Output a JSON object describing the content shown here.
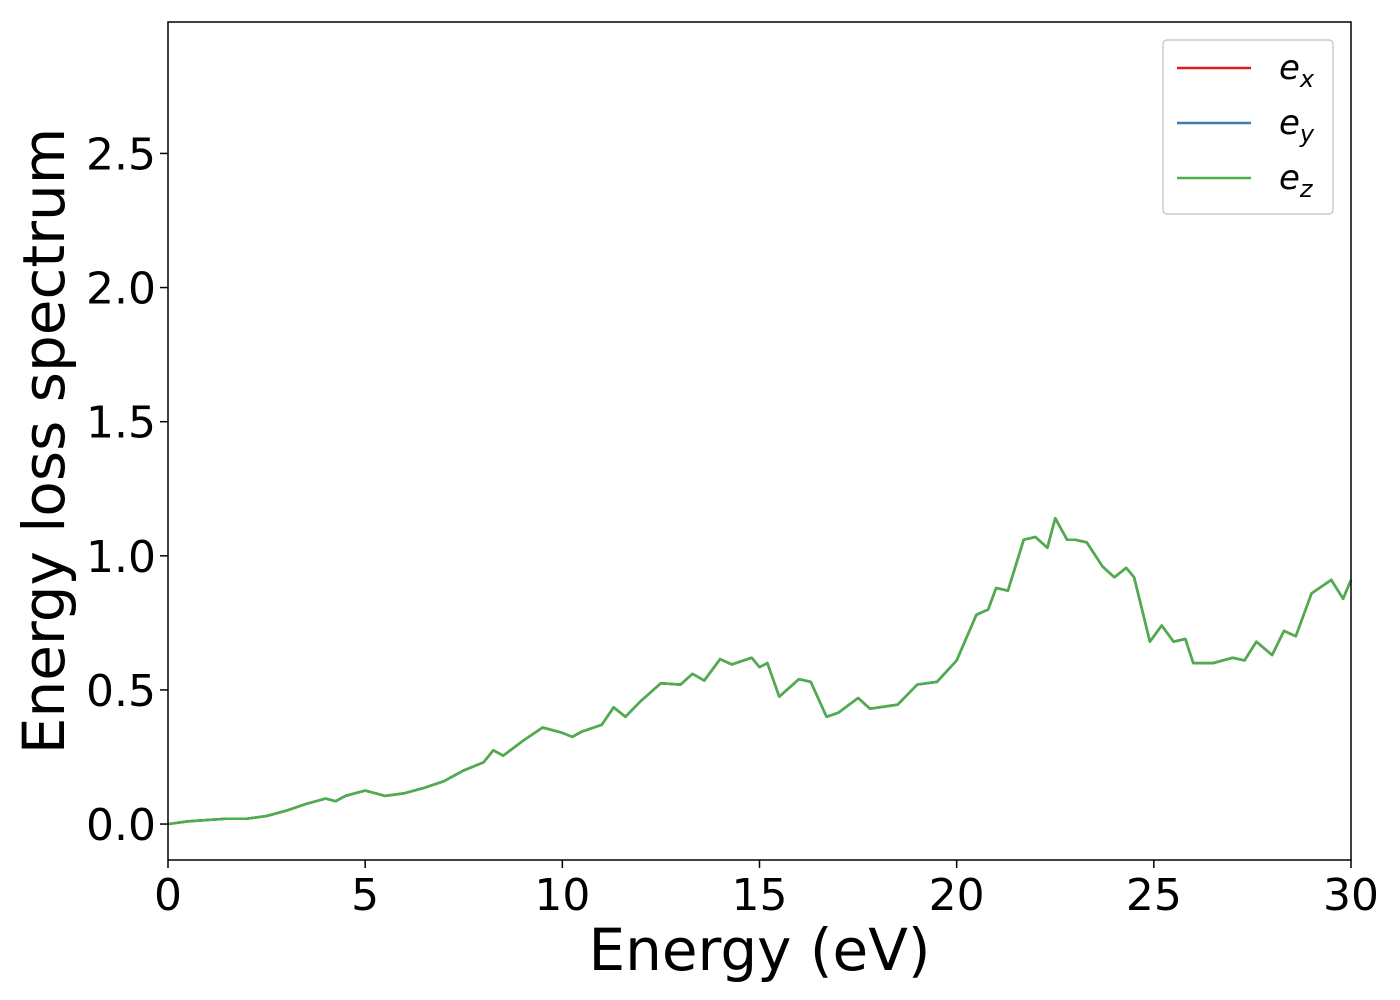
{
  "chart_data": {
    "type": "line",
    "xlabel": "Energy (eV)",
    "ylabel": "Energy loss spectrum",
    "x": [
      0,
      0.5,
      1,
      1.5,
      2,
      2.5,
      3,
      3.5,
      4,
      4.25,
      4.5,
      5,
      5.5,
      6,
      6.5,
      7,
      7.5,
      8,
      8.25,
      8.5,
      9,
      9.5,
      10,
      10.25,
      10.5,
      11,
      11.3,
      11.6,
      12,
      12.5,
      13,
      13.3,
      13.6,
      14,
      14.3,
      14.6,
      14.8,
      15,
      15.2,
      15.5,
      16,
      16.3,
      16.7,
      17,
      17.5,
      17.8,
      18.5,
      19,
      19.5,
      20,
      20.5,
      20.8,
      21,
      21.3,
      21.7,
      22,
      22.3,
      22.5,
      22.8,
      23,
      23.3,
      23.7,
      24,
      24.3,
      24.5,
      24.9,
      25.2,
      25.5,
      25.8,
      26,
      26.5,
      27,
      27.3,
      27.6,
      28,
      28.3,
      28.6,
      29,
      29.5,
      29.8,
      30
    ],
    "series": [
      {
        "name": "e_x",
        "color": "#e41a1c",
        "values": [
          0.0,
          0.01,
          0.015,
          0.02,
          0.02,
          0.03,
          0.05,
          0.075,
          0.095,
          0.085,
          0.105,
          0.125,
          0.105,
          0.115,
          0.135,
          0.16,
          0.2,
          0.23,
          0.275,
          0.255,
          0.31,
          0.36,
          0.34,
          0.325,
          0.345,
          0.37,
          0.435,
          0.4,
          0.46,
          0.525,
          0.52,
          0.56,
          0.535,
          0.615,
          0.595,
          0.61,
          0.62,
          0.585,
          0.6,
          0.475,
          0.54,
          0.53,
          0.4,
          0.415,
          0.47,
          0.43,
          0.445,
          0.52,
          0.53,
          0.61,
          0.78,
          0.8,
          0.88,
          0.87,
          1.06,
          1.07,
          1.03,
          1.14,
          1.06,
          1.06,
          1.05,
          0.96,
          0.92,
          0.955,
          0.92,
          0.68,
          0.74,
          0.68,
          0.69,
          0.6,
          0.6,
          0.62,
          0.61,
          0.68,
          0.63,
          0.72,
          0.7,
          0.86,
          0.91,
          0.84,
          0.91
        ]
      },
      {
        "name": "e_y",
        "color": "#377eb8",
        "values": [
          0.0,
          0.01,
          0.015,
          0.02,
          0.02,
          0.03,
          0.05,
          0.075,
          0.095,
          0.085,
          0.105,
          0.125,
          0.105,
          0.115,
          0.135,
          0.16,
          0.2,
          0.23,
          0.275,
          0.255,
          0.31,
          0.36,
          0.34,
          0.325,
          0.345,
          0.37,
          0.435,
          0.4,
          0.46,
          0.525,
          0.52,
          0.56,
          0.535,
          0.615,
          0.595,
          0.61,
          0.62,
          0.585,
          0.6,
          0.475,
          0.54,
          0.53,
          0.4,
          0.415,
          0.47,
          0.43,
          0.445,
          0.52,
          0.53,
          0.61,
          0.78,
          0.8,
          0.88,
          0.87,
          1.06,
          1.07,
          1.03,
          1.14,
          1.06,
          1.06,
          1.05,
          0.96,
          0.92,
          0.955,
          0.92,
          0.68,
          0.74,
          0.68,
          0.69,
          0.6,
          0.6,
          0.62,
          0.61,
          0.68,
          0.63,
          0.72,
          0.7,
          0.86,
          0.91,
          0.84,
          0.91
        ]
      },
      {
        "name": "e_z",
        "color": "#4daf4a",
        "values": [
          0.0,
          0.01,
          0.015,
          0.02,
          0.02,
          0.03,
          0.05,
          0.075,
          0.095,
          0.085,
          0.105,
          0.125,
          0.105,
          0.115,
          0.135,
          0.16,
          0.2,
          0.23,
          0.275,
          0.255,
          0.31,
          0.36,
          0.34,
          0.325,
          0.345,
          0.37,
          0.435,
          0.4,
          0.46,
          0.525,
          0.52,
          0.56,
          0.535,
          0.615,
          0.595,
          0.61,
          0.62,
          0.585,
          0.6,
          0.475,
          0.54,
          0.53,
          0.4,
          0.415,
          0.47,
          0.43,
          0.445,
          0.52,
          0.53,
          0.61,
          0.78,
          0.8,
          0.88,
          0.87,
          1.06,
          1.07,
          1.03,
          1.14,
          1.06,
          1.06,
          1.05,
          0.96,
          0.92,
          0.955,
          0.92,
          0.68,
          0.74,
          0.68,
          0.69,
          0.6,
          0.6,
          0.62,
          0.61,
          0.68,
          0.63,
          0.72,
          0.7,
          0.86,
          0.91,
          0.84,
          0.91
        ]
      }
    ],
    "xlim": [
      0,
      30
    ],
    "xticks": [
      0,
      5,
      10,
      15,
      20,
      25,
      30
    ],
    "ylim": [
      -0.134,
      2.99
    ],
    "yticks": [
      {
        "value": 0,
        "label": "0.0"
      },
      0.5,
      {
        "value": 1,
        "label": "1.0"
      },
      1.5,
      {
        "value": 2,
        "label": "2.0"
      },
      2.5
    ],
    "grid": false,
    "legend": "upper right"
  }
}
